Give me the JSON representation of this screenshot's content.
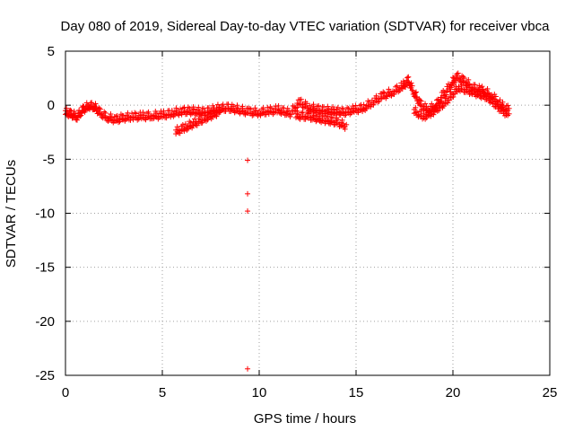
{
  "chart_data": {
    "type": "scatter",
    "title": "Day 080 of 2019, Sidereal Day-to-day VTEC variation (SDTVAR) for receiver vbca",
    "xlabel": "GPS time / hours",
    "ylabel": "SDTVAR / TECUs",
    "xlim": [
      0,
      25
    ],
    "ylim": [
      -25,
      5
    ],
    "x_ticks": [
      0,
      5,
      10,
      15,
      20,
      25
    ],
    "y_ticks": [
      5,
      0,
      -5,
      -10,
      -15,
      -20,
      -25
    ],
    "x_tick_labels": [
      "0",
      "5",
      "10",
      "15",
      "20",
      "25"
    ],
    "y_tick_labels": [
      "5",
      "0",
      "-5",
      "-10",
      "-15",
      "-20",
      "-25"
    ],
    "grid": true,
    "marker": "+",
    "series": [
      {
        "name": "SDTVAR",
        "color": "#ff0000",
        "trace_points": [
          [
            0.0,
            -0.5
          ],
          [
            0.3,
            -0.7
          ],
          [
            0.6,
            -0.9
          ],
          [
            0.9,
            -0.3
          ],
          [
            1.2,
            0.1
          ],
          [
            1.5,
            0.0
          ],
          [
            1.8,
            -0.6
          ],
          [
            2.2,
            -1.0
          ],
          [
            2.6,
            -1.2
          ],
          [
            3.0,
            -1.0
          ],
          [
            3.5,
            -0.9
          ],
          [
            4.0,
            -0.9
          ],
          [
            4.5,
            -0.8
          ],
          [
            5.0,
            -0.8
          ],
          [
            5.5,
            -0.6
          ],
          [
            6.0,
            -0.4
          ],
          [
            6.6,
            -0.4
          ],
          [
            7.2,
            -0.5
          ],
          [
            7.8,
            -0.2
          ],
          [
            8.4,
            -0.1
          ],
          [
            9.0,
            -0.3
          ],
          [
            9.5,
            -0.5
          ],
          [
            10.0,
            -0.5
          ],
          [
            10.5,
            -0.4
          ],
          [
            11.0,
            -0.3
          ],
          [
            11.6,
            -0.6
          ],
          [
            12.1,
            0.4
          ],
          [
            12.6,
            -0.1
          ],
          [
            13.2,
            -0.3
          ],
          [
            13.8,
            -0.4
          ],
          [
            14.4,
            -0.5
          ],
          [
            14.9,
            -0.3
          ],
          [
            15.4,
            -0.1
          ],
          [
            15.9,
            0.5
          ],
          [
            16.4,
            1.0
          ],
          [
            16.9,
            1.4
          ],
          [
            17.4,
            1.9
          ],
          [
            17.7,
            2.4
          ],
          [
            18.0,
            1.3
          ],
          [
            18.3,
            0.3
          ],
          [
            18.7,
            -0.3
          ],
          [
            19.1,
            0.1
          ],
          [
            19.5,
            1.1
          ],
          [
            19.9,
            2.1
          ],
          [
            20.2,
            2.8
          ],
          [
            20.6,
            2.4
          ],
          [
            21.0,
            1.8
          ],
          [
            21.5,
            1.5
          ],
          [
            22.0,
            1.1
          ],
          [
            22.5,
            0.1
          ],
          [
            22.9,
            -0.3
          ]
        ],
        "lower_branch_points": [
          [
            5.7,
            -2.3
          ],
          [
            6.2,
            -1.9
          ],
          [
            6.8,
            -1.4
          ],
          [
            7.4,
            -0.9
          ],
          [
            8.0,
            -0.4
          ],
          [
            11.9,
            -0.8
          ],
          [
            12.6,
            -0.9
          ],
          [
            13.4,
            -1.2
          ],
          [
            14.0,
            -1.4
          ],
          [
            14.5,
            -1.8
          ],
          [
            18.0,
            -0.4
          ],
          [
            18.5,
            -0.9
          ],
          [
            19.0,
            -0.4
          ],
          [
            19.6,
            0.4
          ],
          [
            20.3,
            1.8
          ],
          [
            21.0,
            1.4
          ],
          [
            21.8,
            0.9
          ],
          [
            22.4,
            -0.1
          ],
          [
            22.9,
            -0.8
          ]
        ],
        "outlier_points": [
          [
            9.4,
            -5.1
          ],
          [
            9.4,
            -8.2
          ],
          [
            9.4,
            -9.8
          ],
          [
            9.4,
            -24.4
          ]
        ]
      }
    ]
  }
}
